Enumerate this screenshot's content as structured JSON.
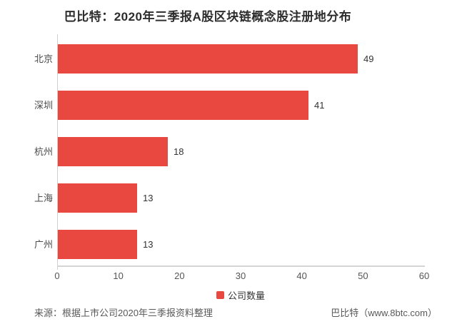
{
  "title": "巴比特：2020年三季报A股区块链概念股注册地分布",
  "colors": {
    "bar": "#e8483f",
    "axis": "#d4d4d4",
    "title_text": "#2d2d2d",
    "category_text": "#4a4a4a",
    "value_text": "#333333",
    "tick_text": "#555555",
    "footer_text": "#595959"
  },
  "chart_data": {
    "type": "bar",
    "orientation": "horizontal",
    "title": "巴比特：2020年三季报A股区块链概念股注册地分布",
    "categories": [
      "北京",
      "深圳",
      "杭州",
      "上海",
      "广州"
    ],
    "series": [
      {
        "name": "公司数量",
        "values": [
          49,
          41,
          18,
          13,
          13
        ]
      }
    ],
    "xlabel": "",
    "ylabel": "",
    "xlim": [
      0,
      60
    ],
    "x_ticks": [
      0,
      10,
      20,
      30,
      40,
      50,
      60
    ],
    "grid": false,
    "legend": {
      "label": "公司数量",
      "position": "bottom-center"
    }
  },
  "footer": {
    "source": "来源：根据上市公司2020年三季报资料整理",
    "credit": "巴比特（www.8btc.com）"
  }
}
